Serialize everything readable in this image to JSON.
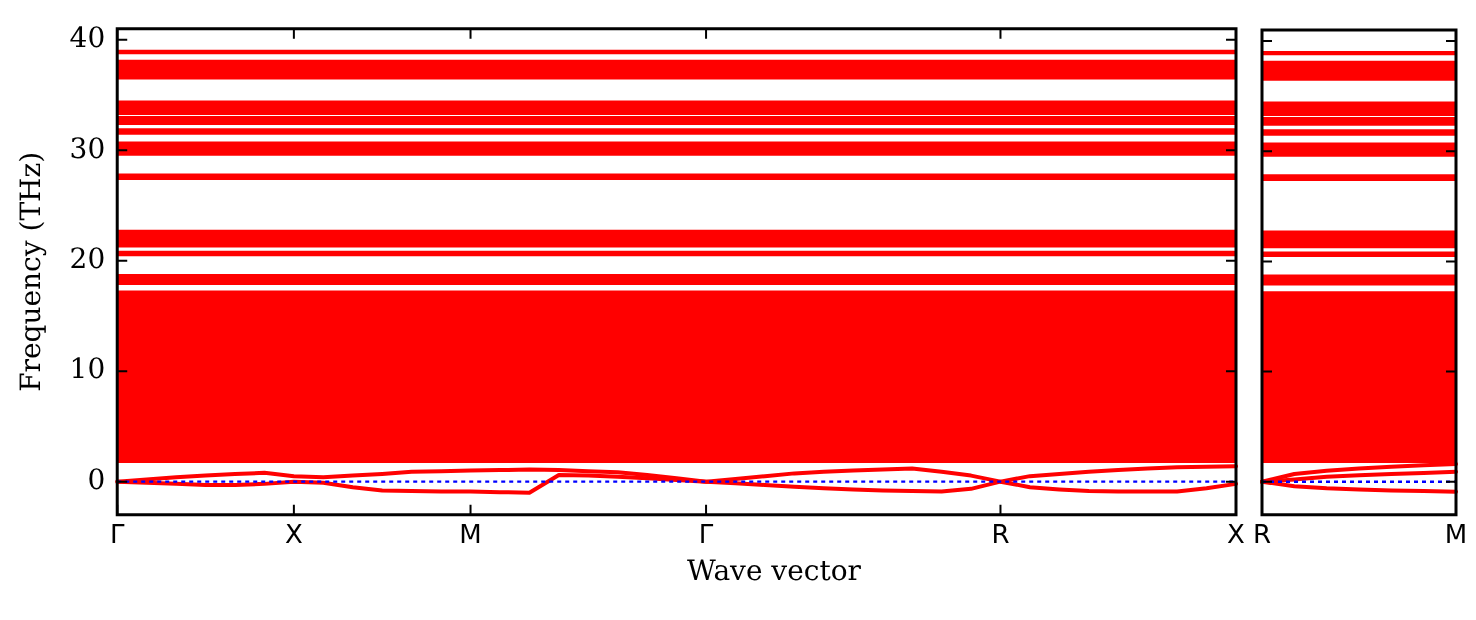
{
  "chart_data": [
    {
      "type": "line",
      "ylabel": "Frequency (THz)",
      "xlabel": "Wave vector",
      "color": "#ff0000",
      "grid": false,
      "tick_labels": true,
      "line_style": "solid",
      "categories": [
        "Γ",
        null,
        null,
        null,
        null,
        null,
        "X",
        null,
        null,
        null,
        null,
        null,
        "M",
        null,
        null,
        null,
        null,
        null,
        null,
        null,
        "Γ",
        null,
        null,
        null,
        null,
        null,
        null,
        null,
        null,
        null,
        "R",
        null,
        null,
        null,
        null,
        null,
        null,
        null,
        "X"
      ],
      "ylim": [
        -3,
        41
      ],
      "yticks": [
        0,
        10,
        20,
        30,
        40
      ],
      "ref_lines": [
        {
          "axis": "y",
          "value": 0,
          "color": "#0000ff",
          "line_style": "dotted"
        }
      ],
      "bands": [
        {
          "axis": "y",
          "from": 38.7,
          "to": 39.1,
          "color": "#ff0000"
        },
        {
          "axis": "y",
          "from": 36.4,
          "to": 38.2,
          "color": "#ff0000"
        },
        {
          "axis": "y",
          "from": 33.2,
          "to": 34.5,
          "color": "#ff0000"
        },
        {
          "axis": "y",
          "from": 32.3,
          "to": 33.1,
          "color": "#ff0000"
        },
        {
          "axis": "y",
          "from": 31.4,
          "to": 32.0,
          "color": "#ff0000"
        },
        {
          "axis": "y",
          "from": 29.5,
          "to": 30.8,
          "color": "#ff0000"
        },
        {
          "axis": "y",
          "from": 27.3,
          "to": 27.9,
          "color": "#ff0000"
        },
        {
          "axis": "y",
          "from": 21.2,
          "to": 22.8,
          "color": "#ff0000"
        },
        {
          "axis": "y",
          "from": 20.4,
          "to": 20.9,
          "color": "#ff0000"
        },
        {
          "axis": "y",
          "from": 17.8,
          "to": 18.8,
          "color": "#ff0000"
        },
        {
          "axis": "y",
          "from": 1.7,
          "to": 17.3,
          "color": "#ff0000"
        }
      ],
      "series": [
        {
          "values": [
            0,
            0.2,
            0.4,
            0.55,
            0.7,
            0.8,
            0.5,
            0.4,
            0.55,
            0.7,
            0.9,
            0.95,
            1.0,
            1.05,
            1.1,
            1.05,
            0.95,
            0.85,
            0.6,
            0.3,
            0,
            0.25,
            0.5,
            0.75,
            0.9,
            1.0,
            1.1,
            1.2,
            0.9,
            0.55,
            0,
            0.5,
            0.7,
            0.9,
            1.05,
            1.2,
            1.3,
            1.35,
            1.4
          ]
        },
        {
          "values": [
            0,
            -0.1,
            -0.2,
            -0.3,
            -0.3,
            -0.2,
            0,
            -0.1,
            -0.5,
            -0.8,
            -0.85,
            -0.9,
            -0.9,
            -0.95,
            -1.0,
            0.6,
            0.55,
            0.45,
            0.3,
            0.15,
            0,
            -0.15,
            -0.3,
            -0.45,
            -0.6,
            -0.7,
            -0.8,
            -0.85,
            -0.9,
            -0.65,
            0,
            -0.5,
            -0.7,
            -0.85,
            -0.9,
            -0.9,
            -0.9,
            -0.6,
            -0.2
          ]
        }
      ]
    },
    {
      "type": "line",
      "color": "#ff0000",
      "grid": false,
      "tick_labels": "x",
      "line_style": "solid",
      "categories": [
        "R",
        null,
        null,
        null,
        null,
        null,
        "M"
      ],
      "ylim": [
        -3,
        41
      ],
      "yticks": [
        0,
        10,
        20,
        30,
        40
      ],
      "ref_lines": [
        {
          "axis": "y",
          "value": 0,
          "color": "#0000ff",
          "line_style": "dotted"
        }
      ],
      "bands": [
        {
          "axis": "y",
          "from": 38.7,
          "to": 39.1,
          "color": "#ff0000"
        },
        {
          "axis": "y",
          "from": 36.4,
          "to": 38.2,
          "color": "#ff0000"
        },
        {
          "axis": "y",
          "from": 33.2,
          "to": 34.5,
          "color": "#ff0000"
        },
        {
          "axis": "y",
          "from": 32.3,
          "to": 33.1,
          "color": "#ff0000"
        },
        {
          "axis": "y",
          "from": 31.4,
          "to": 32.0,
          "color": "#ff0000"
        },
        {
          "axis": "y",
          "from": 29.5,
          "to": 30.8,
          "color": "#ff0000"
        },
        {
          "axis": "y",
          "from": 27.3,
          "to": 27.9,
          "color": "#ff0000"
        },
        {
          "axis": "y",
          "from": 21.2,
          "to": 22.8,
          "color": "#ff0000"
        },
        {
          "axis": "y",
          "from": 20.4,
          "to": 20.9,
          "color": "#ff0000"
        },
        {
          "axis": "y",
          "from": 17.8,
          "to": 18.8,
          "color": "#ff0000"
        },
        {
          "axis": "y",
          "from": 1.7,
          "to": 17.3,
          "color": "#ff0000"
        }
      ],
      "series": [
        {
          "values": [
            0,
            0.7,
            1.0,
            1.2,
            1.35,
            1.5,
            1.6
          ]
        },
        {
          "values": [
            0,
            0.2,
            0.45,
            0.6,
            0.7,
            0.8,
            0.9
          ]
        },
        {
          "values": [
            0,
            -0.4,
            -0.6,
            -0.7,
            -0.8,
            -0.85,
            -0.9
          ]
        }
      ]
    }
  ]
}
